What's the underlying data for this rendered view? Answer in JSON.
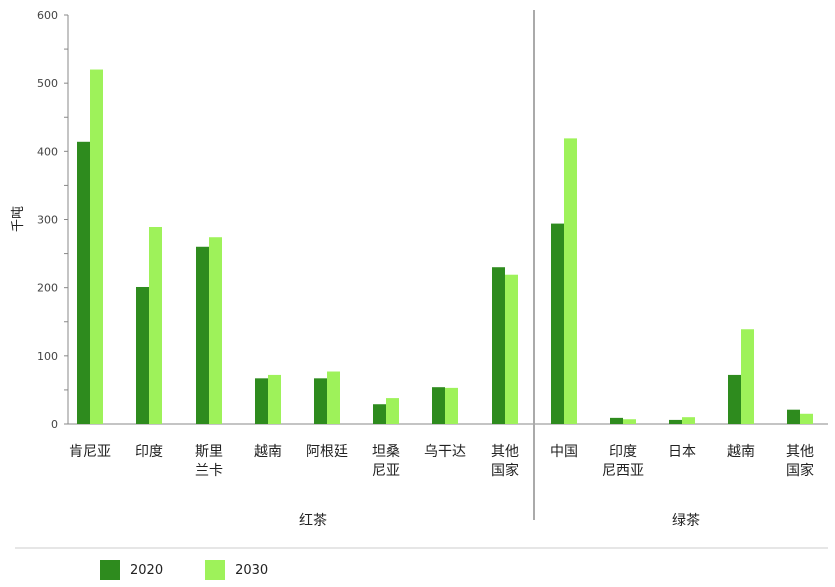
{
  "chart_data": {
    "type": "bar",
    "ylabel": "千吨",
    "ylim": [
      0,
      600
    ],
    "yticks": [
      0,
      100,
      200,
      300,
      400,
      500,
      600
    ],
    "colors": {
      "2020": "#2e8b1e",
      "2030": "#9ef25a"
    },
    "groups": [
      {
        "name": "红茶",
        "categories": [
          {
            "lines": [
              "肯尼亚"
            ]
          },
          {
            "lines": [
              "印度"
            ]
          },
          {
            "lines": [
              "斯里",
              "兰卡"
            ]
          },
          {
            "lines": [
              "越南"
            ]
          },
          {
            "lines": [
              "阿根廷"
            ]
          },
          {
            "lines": [
              "坦桑",
              "尼亚"
            ]
          },
          {
            "lines": [
              "乌干达"
            ]
          },
          {
            "lines": [
              "其他",
              "国家"
            ]
          }
        ]
      },
      {
        "name": "绿茶",
        "categories": [
          {
            "lines": [
              "中国"
            ]
          },
          {
            "lines": [
              "印度",
              "尼西亚"
            ]
          },
          {
            "lines": [
              "日本"
            ]
          },
          {
            "lines": [
              "越南"
            ]
          },
          {
            "lines": [
              "其他",
              "国家"
            ]
          }
        ]
      }
    ],
    "series": [
      {
        "name": "2020",
        "values": [
          414,
          201,
          260,
          67,
          67,
          29,
          54,
          230,
          294,
          9,
          6,
          72,
          21
        ]
      },
      {
        "name": "2030",
        "values": [
          520,
          289,
          274,
          72,
          77,
          38,
          53,
          219,
          419,
          7,
          10,
          139,
          15
        ]
      }
    ],
    "legend": [
      "2020",
      "2030"
    ],
    "legend_position": "bottom-left",
    "grid": false
  }
}
